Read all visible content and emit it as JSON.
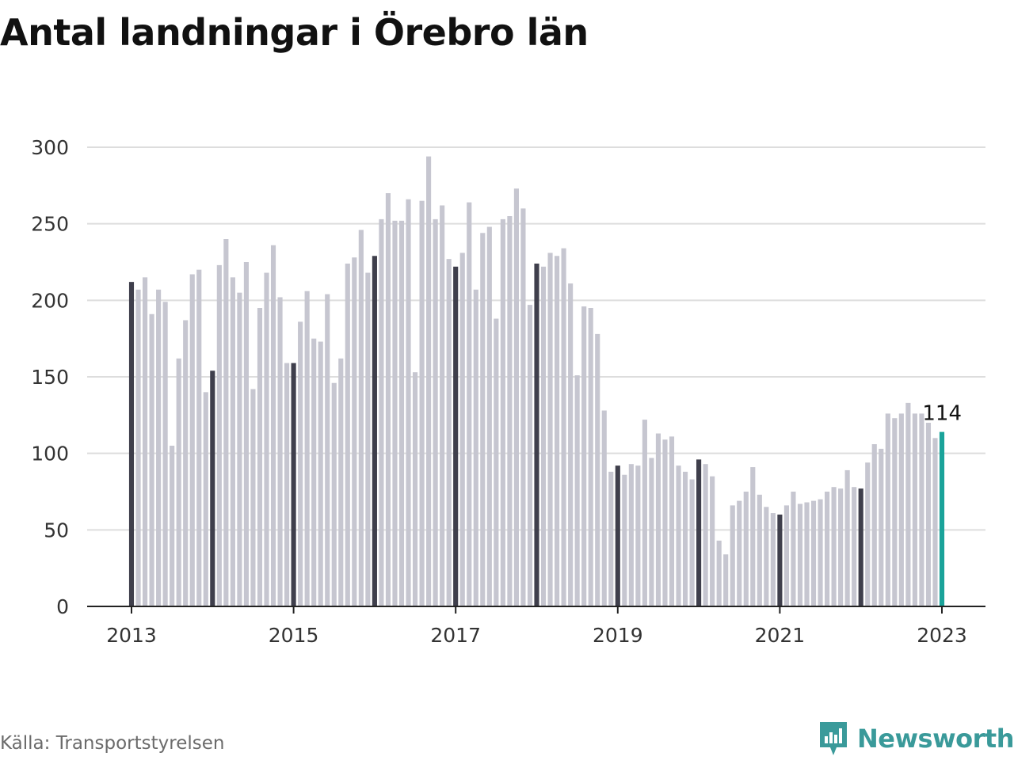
{
  "header": {
    "title": "Antal landningar i Örebro län"
  },
  "footer": {
    "source": "Källa: Transportstyrelsen",
    "brand": "Newsworthy"
  },
  "colors": {
    "bar": "#c6c6d0",
    "january": "#3f3f4c",
    "latest": "#1aa39a",
    "grid": "#dddddd",
    "brand": "#3a9a9a"
  },
  "icons": {
    "brand": "newsworthy-logo-icon"
  },
  "chart_data": {
    "type": "bar",
    "title": "Antal landningar i Örebro län",
    "xlabel": "",
    "ylabel": "",
    "ylim": [
      0,
      300
    ],
    "yticks": [
      0,
      50,
      100,
      150,
      200,
      250,
      300
    ],
    "xticks": [
      "2013",
      "2015",
      "2017",
      "2019",
      "2021",
      "2023"
    ],
    "grid": true,
    "start": "2013-01",
    "end": "2023-01",
    "annotation": {
      "month": "2023-01",
      "label": "114"
    },
    "values": [
      212,
      207,
      215,
      191,
      207,
      199,
      105,
      162,
      187,
      217,
      220,
      140,
      154,
      223,
      240,
      215,
      205,
      225,
      142,
      195,
      218,
      236,
      202,
      159,
      159,
      186,
      206,
      175,
      173,
      204,
      146,
      162,
      224,
      228,
      246,
      218,
      229,
      253,
      270,
      252,
      252,
      266,
      153,
      265,
      294,
      253,
      262,
      227,
      222,
      231,
      264,
      207,
      244,
      248,
      188,
      253,
      255,
      273,
      260,
      197,
      224,
      222,
      231,
      229,
      234,
      211,
      151,
      196,
      195,
      178,
      128,
      88,
      92,
      86,
      93,
      92,
      122,
      97,
      113,
      109,
      111,
      92,
      88,
      83,
      96,
      93,
      85,
      43,
      34,
      66,
      69,
      75,
      91,
      73,
      65,
      61,
      60,
      66,
      75,
      67,
      68,
      69,
      70,
      75,
      78,
      77,
      89,
      78,
      77,
      94,
      106,
      103,
      126,
      123,
      126,
      133,
      126,
      126,
      120,
      110,
      114
    ]
  }
}
